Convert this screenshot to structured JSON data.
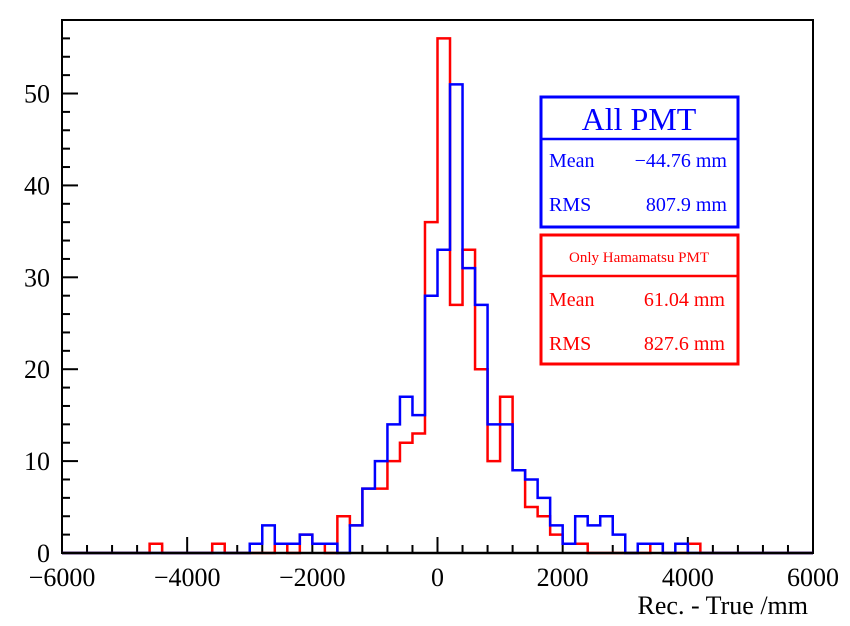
{
  "chart_data": {
    "type": "histogram",
    "xlabel": "Rec. - True /mm",
    "ylabel": "",
    "xlim": [
      -6000,
      6000
    ],
    "ylim": [
      0,
      58
    ],
    "bin_width": 200,
    "x_ticks": [
      -6000,
      -4000,
      -2000,
      0,
      2000,
      4000,
      6000
    ],
    "x_tick_labels": [
      "−6000",
      "−4000",
      "−2000",
      "0",
      "2000",
      "4000",
      "6000"
    ],
    "y_ticks": [
      0,
      10,
      20,
      30,
      40,
      50
    ],
    "y_tick_labels": [
      "0",
      "10",
      "20",
      "30",
      "40",
      "50"
    ],
    "series": [
      {
        "name": "Only Hamamatsu PMT",
        "color": "#ff0000",
        "bins": [
          {
            "x0": -4600,
            "v": 1
          },
          {
            "x0": -3600,
            "v": 1
          },
          {
            "x0": -2600,
            "v": 1
          },
          {
            "x0": -2400,
            "v": 0
          },
          {
            "x0": -2200,
            "v": 2
          },
          {
            "x0": -2000,
            "v": 1
          },
          {
            "x0": -1800,
            "v": 0
          },
          {
            "x0": -1600,
            "v": 4
          },
          {
            "x0": -1400,
            "v": 3
          },
          {
            "x0": -1200,
            "v": 7
          },
          {
            "x0": -1000,
            "v": 7
          },
          {
            "x0": -800,
            "v": 10
          },
          {
            "x0": -600,
            "v": 12
          },
          {
            "x0": -400,
            "v": 13
          },
          {
            "x0": -200,
            "v": 36
          },
          {
            "x0": 0,
            "v": 56
          },
          {
            "x0": 200,
            "v": 27
          },
          {
            "x0": 400,
            "v": 33
          },
          {
            "x0": 600,
            "v": 20
          },
          {
            "x0": 800,
            "v": 10
          },
          {
            "x0": 1000,
            "v": 17
          },
          {
            "x0": 1200,
            "v": 9
          },
          {
            "x0": 1400,
            "v": 5
          },
          {
            "x0": 1600,
            "v": 4
          },
          {
            "x0": 1800,
            "v": 2
          },
          {
            "x0": 2000,
            "v": 1
          },
          {
            "x0": 2200,
            "v": 1
          },
          {
            "x0": 3400,
            "v": 1
          },
          {
            "x0": 4000,
            "v": 1
          }
        ]
      },
      {
        "name": "All PMT",
        "color": "#0000ff",
        "bins": [
          {
            "x0": -3000,
            "v": 1
          },
          {
            "x0": -2800,
            "v": 3
          },
          {
            "x0": -2600,
            "v": 1
          },
          {
            "x0": -2400,
            "v": 1
          },
          {
            "x0": -2200,
            "v": 2
          },
          {
            "x0": -2000,
            "v": 1
          },
          {
            "x0": -1800,
            "v": 1
          },
          {
            "x0": -1600,
            "v": 0
          },
          {
            "x0": -1400,
            "v": 3
          },
          {
            "x0": -1200,
            "v": 7
          },
          {
            "x0": -1000,
            "v": 10
          },
          {
            "x0": -800,
            "v": 14
          },
          {
            "x0": -600,
            "v": 17
          },
          {
            "x0": -400,
            "v": 15
          },
          {
            "x0": -200,
            "v": 28
          },
          {
            "x0": 0,
            "v": 33
          },
          {
            "x0": 200,
            "v": 51
          },
          {
            "x0": 400,
            "v": 31
          },
          {
            "x0": 600,
            "v": 27
          },
          {
            "x0": 800,
            "v": 14
          },
          {
            "x0": 1000,
            "v": 14
          },
          {
            "x0": 1200,
            "v": 9
          },
          {
            "x0": 1400,
            "v": 8
          },
          {
            "x0": 1600,
            "v": 6
          },
          {
            "x0": 1800,
            "v": 3
          },
          {
            "x0": 2000,
            "v": 1
          },
          {
            "x0": 2200,
            "v": 4
          },
          {
            "x0": 2400,
            "v": 3
          },
          {
            "x0": 2600,
            "v": 4
          },
          {
            "x0": 2800,
            "v": 2
          },
          {
            "x0": 3000,
            "v": 0
          },
          {
            "x0": 3200,
            "v": 1
          },
          {
            "x0": 3400,
            "v": 1
          },
          {
            "x0": 3800,
            "v": 1
          }
        ]
      }
    ],
    "stat_boxes": [
      {
        "title": "All PMT",
        "color": "#0000ff",
        "rows": [
          {
            "label": "Mean",
            "value": "−44.76 mm"
          },
          {
            "label": "RMS",
            "value": "807.9 mm"
          }
        ]
      },
      {
        "title": "Only Hamamatsu PMT",
        "color": "#ff0000",
        "rows": [
          {
            "label": "Mean",
            "value": "61.04 mm"
          },
          {
            "label": "RMS",
            "value": "827.6 mm"
          }
        ]
      }
    ]
  }
}
